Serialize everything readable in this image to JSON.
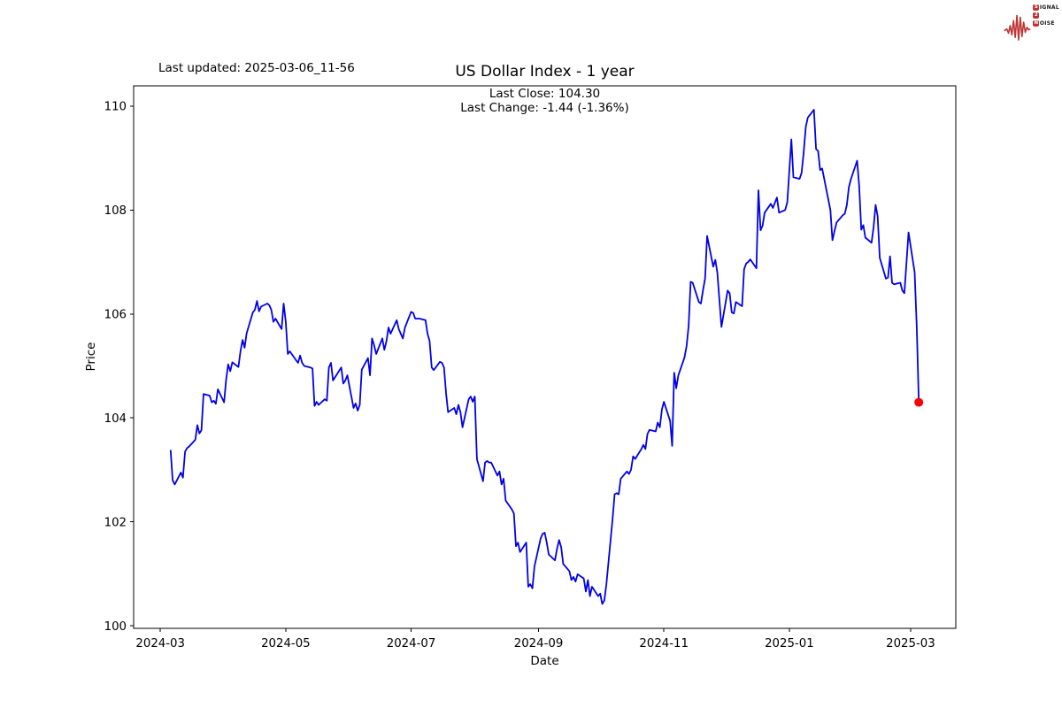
{
  "header": {
    "last_updated": "Last updated: 2025-03-06_11-56"
  },
  "logo": {
    "s": "S",
    "ignal": "IGNAL",
    "two": "2",
    "n": "N",
    "oise": "OISE",
    "waveform_color": "#bd3434",
    "badge_color": "#bd3434"
  },
  "chart_data": {
    "type": "line",
    "title": "US Dollar Index - 1 year",
    "subtitle_lines": [
      "Last Close: 104.30",
      "Last Change: -1.44 (-1.36%)"
    ],
    "xlabel": "Date",
    "ylabel": "Price",
    "line_color": "#0000ee",
    "marker": {
      "date": "2025-03-05",
      "value": 104.3,
      "color": "#ff0000"
    },
    "ylim": [
      99.95,
      110.39
    ],
    "xlim": [
      "2024-02-17",
      "2025-03-23"
    ],
    "grid": false,
    "legend": "none",
    "y_ticks": [
      100,
      102,
      104,
      106,
      108,
      110
    ],
    "x_ticks": [
      {
        "date": "2024-03-01",
        "label": "2024-03"
      },
      {
        "date": "2024-05-01",
        "label": "2024-05"
      },
      {
        "date": "2024-07-01",
        "label": "2024-07"
      },
      {
        "date": "2024-09-01",
        "label": "2024-09"
      },
      {
        "date": "2024-11-01",
        "label": "2024-11"
      },
      {
        "date": "2025-01-01",
        "label": "2025-01"
      },
      {
        "date": "2025-03-01",
        "label": "2025-03"
      }
    ],
    "series": [
      {
        "name": "US Dollar Index",
        "points": [
          [
            "2024-03-06",
            103.37
          ],
          [
            "2024-03-07",
            102.8
          ],
          [
            "2024-03-08",
            102.72
          ],
          [
            "2024-03-11",
            102.95
          ],
          [
            "2024-03-12",
            102.85
          ],
          [
            "2024-03-13",
            103.35
          ],
          [
            "2024-03-14",
            103.42
          ],
          [
            "2024-03-15",
            103.45
          ],
          [
            "2024-03-18",
            103.58
          ],
          [
            "2024-03-19",
            103.86
          ],
          [
            "2024-03-20",
            103.7
          ],
          [
            "2024-03-21",
            103.76
          ],
          [
            "2024-03-22",
            104.46
          ],
          [
            "2024-03-25",
            104.43
          ],
          [
            "2024-03-26",
            104.3
          ],
          [
            "2024-03-27",
            104.33
          ],
          [
            "2024-03-28",
            104.27
          ],
          [
            "2024-03-29",
            104.55
          ],
          [
            "2024-04-01",
            104.3
          ],
          [
            "2024-04-02",
            104.73
          ],
          [
            "2024-04-03",
            105.03
          ],
          [
            "2024-04-04",
            104.9
          ],
          [
            "2024-04-05",
            105.07
          ],
          [
            "2024-04-08",
            104.98
          ],
          [
            "2024-04-09",
            105.29
          ],
          [
            "2024-04-10",
            105.5
          ],
          [
            "2024-04-11",
            105.35
          ],
          [
            "2024-04-12",
            105.63
          ],
          [
            "2024-04-15",
            106.03
          ],
          [
            "2024-04-16",
            106.08
          ],
          [
            "2024-04-17",
            106.25
          ],
          [
            "2024-04-18",
            106.05
          ],
          [
            "2024-04-19",
            106.14
          ],
          [
            "2024-04-22",
            106.2
          ],
          [
            "2024-04-23",
            106.17
          ],
          [
            "2024-04-24",
            106.08
          ],
          [
            "2024-04-25",
            105.85
          ],
          [
            "2024-04-26",
            105.91
          ],
          [
            "2024-04-29",
            105.71
          ],
          [
            "2024-04-30",
            106.2
          ],
          [
            "2024-05-01",
            105.85
          ],
          [
            "2024-05-02",
            105.23
          ],
          [
            "2024-05-03",
            105.28
          ],
          [
            "2024-05-06",
            105.11
          ],
          [
            "2024-05-07",
            105.06
          ],
          [
            "2024-05-08",
            105.2
          ],
          [
            "2024-05-09",
            105.06
          ],
          [
            "2024-05-10",
            105.0
          ],
          [
            "2024-05-13",
            104.97
          ],
          [
            "2024-05-14",
            104.95
          ],
          [
            "2024-05-15",
            104.23
          ],
          [
            "2024-05-16",
            104.31
          ],
          [
            "2024-05-17",
            104.25
          ],
          [
            "2024-05-20",
            104.36
          ],
          [
            "2024-05-21",
            104.33
          ],
          [
            "2024-05-22",
            104.97
          ],
          [
            "2024-05-23",
            105.06
          ],
          [
            "2024-05-24",
            104.72
          ],
          [
            "2024-05-28",
            104.97
          ],
          [
            "2024-05-29",
            104.66
          ],
          [
            "2024-05-30",
            104.72
          ],
          [
            "2024-05-31",
            104.82
          ],
          [
            "2024-06-03",
            104.19
          ],
          [
            "2024-06-04",
            104.28
          ],
          [
            "2024-06-05",
            104.14
          ],
          [
            "2024-06-06",
            104.25
          ],
          [
            "2024-06-07",
            104.93
          ],
          [
            "2024-06-10",
            105.15
          ],
          [
            "2024-06-11",
            104.82
          ],
          [
            "2024-06-12",
            105.53
          ],
          [
            "2024-06-13",
            105.4
          ],
          [
            "2024-06-14",
            105.23
          ],
          [
            "2024-06-17",
            105.53
          ],
          [
            "2024-06-18",
            105.31
          ],
          [
            "2024-06-19",
            105.48
          ],
          [
            "2024-06-20",
            105.74
          ],
          [
            "2024-06-21",
            105.62
          ],
          [
            "2024-06-24",
            105.88
          ],
          [
            "2024-06-25",
            105.71
          ],
          [
            "2024-06-26",
            105.62
          ],
          [
            "2024-06-27",
            105.53
          ],
          [
            "2024-06-28",
            105.74
          ],
          [
            "2024-07-01",
            106.04
          ],
          [
            "2024-07-02",
            106.02
          ],
          [
            "2024-07-03",
            105.91
          ],
          [
            "2024-07-05",
            105.91
          ],
          [
            "2024-07-08",
            105.88
          ],
          [
            "2024-07-09",
            105.62
          ],
          [
            "2024-07-10",
            105.48
          ],
          [
            "2024-07-11",
            104.97
          ],
          [
            "2024-07-12",
            104.92
          ],
          [
            "2024-07-15",
            105.08
          ],
          [
            "2024-07-16",
            105.06
          ],
          [
            "2024-07-17",
            104.97
          ],
          [
            "2024-07-18",
            104.48
          ],
          [
            "2024-07-19",
            104.11
          ],
          [
            "2024-07-22",
            104.19
          ],
          [
            "2024-07-23",
            104.07
          ],
          [
            "2024-07-24",
            104.25
          ],
          [
            "2024-07-25",
            104.11
          ],
          [
            "2024-07-26",
            103.82
          ],
          [
            "2024-07-29",
            104.36
          ],
          [
            "2024-07-30",
            104.41
          ],
          [
            "2024-07-31",
            104.31
          ],
          [
            "2024-08-01",
            104.41
          ],
          [
            "2024-08-02",
            103.21
          ],
          [
            "2024-08-05",
            102.78
          ],
          [
            "2024-08-06",
            103.14
          ],
          [
            "2024-08-07",
            103.17
          ],
          [
            "2024-08-08",
            103.14
          ],
          [
            "2024-08-09",
            103.14
          ],
          [
            "2024-08-12",
            102.89
          ],
          [
            "2024-08-13",
            102.97
          ],
          [
            "2024-08-14",
            102.72
          ],
          [
            "2024-08-15",
            102.83
          ],
          [
            "2024-08-16",
            102.41
          ],
          [
            "2024-08-19",
            102.24
          ],
          [
            "2024-08-20",
            102.16
          ],
          [
            "2024-08-21",
            101.53
          ],
          [
            "2024-08-22",
            101.6
          ],
          [
            "2024-08-23",
            101.42
          ],
          [
            "2024-08-26",
            101.6
          ],
          [
            "2024-08-27",
            100.75
          ],
          [
            "2024-08-28",
            100.8
          ],
          [
            "2024-08-29",
            100.72
          ],
          [
            "2024-08-30",
            101.14
          ],
          [
            "2024-09-02",
            101.68
          ],
          [
            "2024-09-03",
            101.77
          ],
          [
            "2024-09-04",
            101.79
          ],
          [
            "2024-09-05",
            101.6
          ],
          [
            "2024-09-06",
            101.37
          ],
          [
            "2024-09-09",
            101.26
          ],
          [
            "2024-09-10",
            101.48
          ],
          [
            "2024-09-11",
            101.65
          ],
          [
            "2024-09-12",
            101.51
          ],
          [
            "2024-09-13",
            101.19
          ],
          [
            "2024-09-16",
            101.05
          ],
          [
            "2024-09-17",
            100.88
          ],
          [
            "2024-09-18",
            100.94
          ],
          [
            "2024-09-19",
            100.85
          ],
          [
            "2024-09-20",
            100.99
          ],
          [
            "2024-09-23",
            100.91
          ],
          [
            "2024-09-24",
            100.66
          ],
          [
            "2024-09-25",
            100.88
          ],
          [
            "2024-09-26",
            100.57
          ],
          [
            "2024-09-27",
            100.75
          ],
          [
            "2024-09-30",
            100.57
          ],
          [
            "2024-10-01",
            100.62
          ],
          [
            "2024-10-02",
            100.42
          ],
          [
            "2024-10-03",
            100.49
          ],
          [
            "2024-10-04",
            100.8
          ],
          [
            "2024-10-07",
            102.04
          ],
          [
            "2024-10-08",
            102.53
          ],
          [
            "2024-10-09",
            102.55
          ],
          [
            "2024-10-10",
            102.53
          ],
          [
            "2024-10-11",
            102.83
          ],
          [
            "2024-10-14",
            102.97
          ],
          [
            "2024-10-15",
            102.92
          ],
          [
            "2024-10-16",
            103.0
          ],
          [
            "2024-10-17",
            103.26
          ],
          [
            "2024-10-18",
            103.21
          ],
          [
            "2024-10-21",
            103.4
          ],
          [
            "2024-10-22",
            103.48
          ],
          [
            "2024-10-23",
            103.4
          ],
          [
            "2024-10-24",
            103.69
          ],
          [
            "2024-10-25",
            103.77
          ],
          [
            "2024-10-28",
            103.74
          ],
          [
            "2024-10-29",
            103.91
          ],
          [
            "2024-10-30",
            103.82
          ],
          [
            "2024-10-31",
            104.16
          ],
          [
            "2024-11-01",
            104.31
          ],
          [
            "2024-11-04",
            103.94
          ],
          [
            "2024-11-05",
            103.46
          ],
          [
            "2024-11-06",
            104.87
          ],
          [
            "2024-11-07",
            104.57
          ],
          [
            "2024-11-08",
            104.82
          ],
          [
            "2024-11-11",
            105.16
          ],
          [
            "2024-11-12",
            105.38
          ],
          [
            "2024-11-13",
            105.77
          ],
          [
            "2024-11-14",
            106.62
          ],
          [
            "2024-11-15",
            106.6
          ],
          [
            "2024-11-18",
            106.23
          ],
          [
            "2024-11-19",
            106.2
          ],
          [
            "2024-11-20",
            106.45
          ],
          [
            "2024-11-21",
            106.68
          ],
          [
            "2024-11-22",
            107.5
          ],
          [
            "2024-11-25",
            106.91
          ],
          [
            "2024-11-26",
            107.04
          ],
          [
            "2024-11-27",
            106.79
          ],
          [
            "2024-11-29",
            105.75
          ],
          [
            "2024-12-02",
            106.45
          ],
          [
            "2024-12-03",
            106.4
          ],
          [
            "2024-12-04",
            106.03
          ],
          [
            "2024-12-05",
            106.01
          ],
          [
            "2024-12-06",
            106.23
          ],
          [
            "2024-12-09",
            106.15
          ],
          [
            "2024-12-10",
            106.86
          ],
          [
            "2024-12-11",
            106.97
          ],
          [
            "2024-12-12",
            107.0
          ],
          [
            "2024-12-13",
            107.05
          ],
          [
            "2024-12-16",
            106.88
          ],
          [
            "2024-12-17",
            108.38
          ],
          [
            "2024-12-18",
            107.61
          ],
          [
            "2024-12-19",
            107.7
          ],
          [
            "2024-12-20",
            107.95
          ],
          [
            "2024-12-23",
            108.12
          ],
          [
            "2024-12-24",
            108.04
          ],
          [
            "2024-12-26",
            108.24
          ],
          [
            "2024-12-27",
            107.95
          ],
          [
            "2024-12-30",
            108.0
          ],
          [
            "2024-12-31",
            108.15
          ],
          [
            "2025-01-02",
            109.36
          ],
          [
            "2025-01-03",
            108.63
          ],
          [
            "2025-01-06",
            108.6
          ],
          [
            "2025-01-07",
            108.72
          ],
          [
            "2025-01-08",
            109.11
          ],
          [
            "2025-01-09",
            109.6
          ],
          [
            "2025-01-10",
            109.78
          ],
          [
            "2025-01-13",
            109.93
          ],
          [
            "2025-01-14",
            109.17
          ],
          [
            "2025-01-15",
            109.14
          ],
          [
            "2025-01-16",
            108.77
          ],
          [
            "2025-01-17",
            108.8
          ],
          [
            "2025-01-21",
            108.0
          ],
          [
            "2025-01-22",
            107.42
          ],
          [
            "2025-01-23",
            107.6
          ],
          [
            "2025-01-24",
            107.76
          ],
          [
            "2025-01-27",
            107.9
          ],
          [
            "2025-01-28",
            107.93
          ],
          [
            "2025-01-29",
            108.1
          ],
          [
            "2025-01-30",
            108.44
          ],
          [
            "2025-01-31",
            108.6
          ],
          [
            "2025-02-03",
            108.95
          ],
          [
            "2025-02-04",
            108.47
          ],
          [
            "2025-02-05",
            107.62
          ],
          [
            "2025-02-06",
            107.71
          ],
          [
            "2025-02-07",
            107.47
          ],
          [
            "2025-02-10",
            107.37
          ],
          [
            "2025-02-11",
            107.67
          ],
          [
            "2025-02-12",
            108.1
          ],
          [
            "2025-02-13",
            107.88
          ],
          [
            "2025-02-14",
            107.08
          ],
          [
            "2025-02-17",
            106.68
          ],
          [
            "2025-02-18",
            106.7
          ],
          [
            "2025-02-19",
            107.11
          ],
          [
            "2025-02-20",
            106.6
          ],
          [
            "2025-02-21",
            106.57
          ],
          [
            "2025-02-24",
            106.6
          ],
          [
            "2025-02-25",
            106.45
          ],
          [
            "2025-02-26",
            106.4
          ],
          [
            "2025-02-27",
            106.99
          ],
          [
            "2025-02-28",
            107.57
          ],
          [
            "2025-03-03",
            106.8
          ],
          [
            "2025-03-04",
            105.74
          ],
          [
            "2025-03-05",
            104.3
          ]
        ]
      }
    ]
  }
}
